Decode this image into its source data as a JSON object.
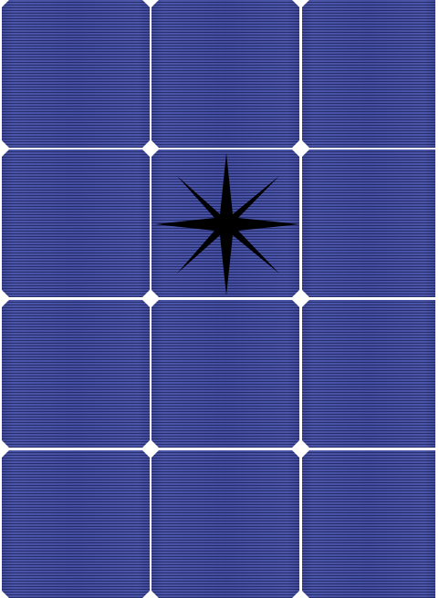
{
  "image": {
    "subject": "solar-panel-with-star-mark",
    "cell_grid": {
      "rows": 4,
      "columns": 3
    },
    "colors": {
      "cell_blue": "#3a4496",
      "grid_lines": "#ffffff",
      "star": "#000000"
    },
    "mark": {
      "icon": "eight-point-star-icon"
    }
  }
}
